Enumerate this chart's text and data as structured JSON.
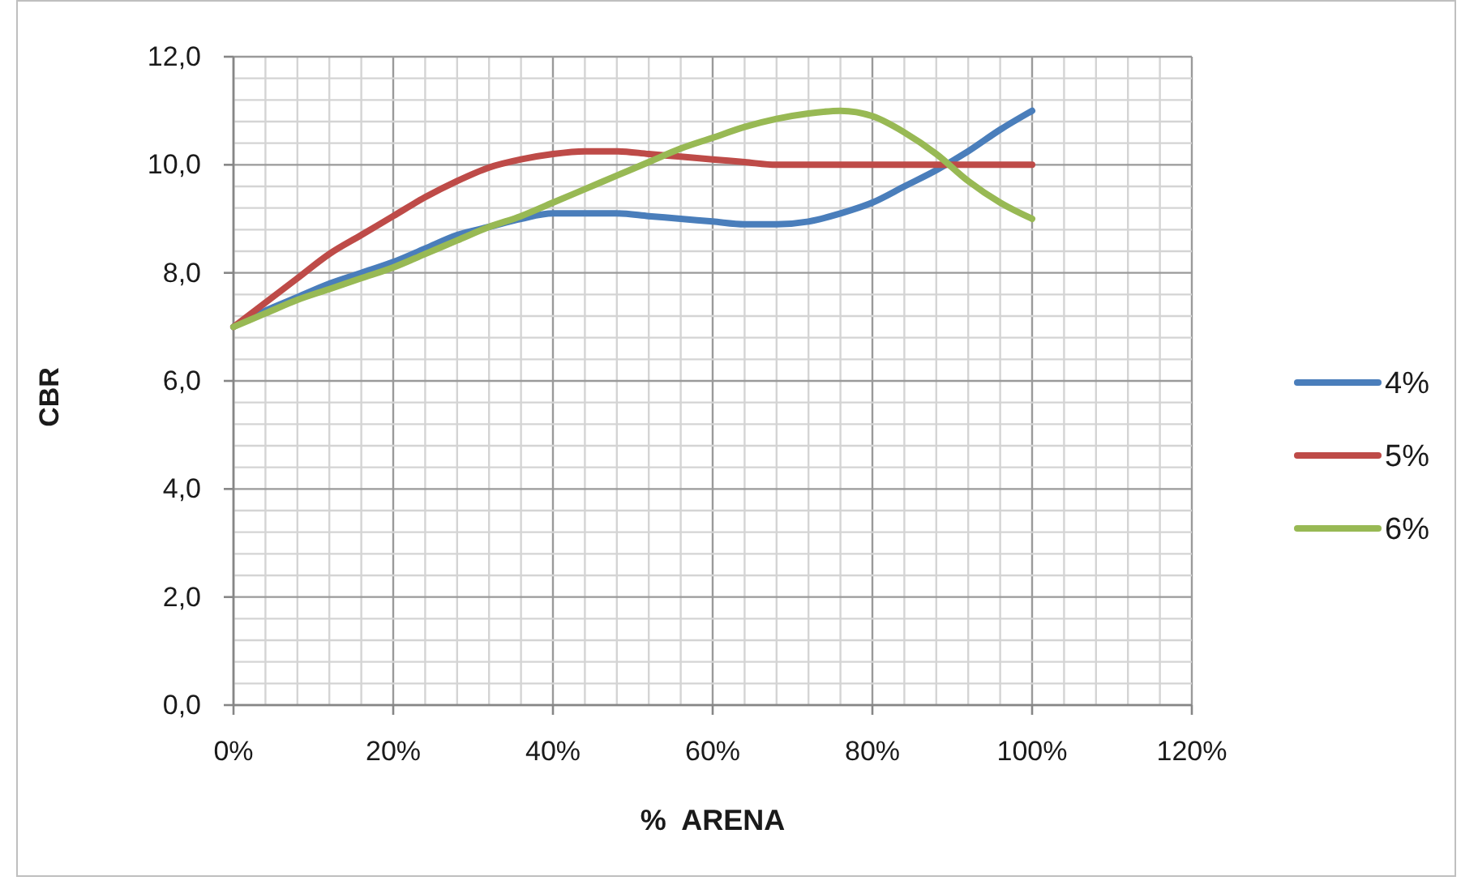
{
  "chart_data": {
    "type": "line",
    "xlabel": "%  ARENA",
    "ylabel": "CBR",
    "x": [
      0,
      4,
      8,
      12,
      16,
      20,
      24,
      28,
      32,
      36,
      40,
      44,
      48,
      52,
      56,
      60,
      64,
      68,
      72,
      76,
      80,
      84,
      88,
      92,
      96,
      100
    ],
    "series": [
      {
        "name": "4%",
        "color": "#4a7ebb",
        "values": [
          7.0,
          7.3,
          7.55,
          7.8,
          8.0,
          8.2,
          8.45,
          8.7,
          8.85,
          9.0,
          9.1,
          9.1,
          9.1,
          9.05,
          9.0,
          8.95,
          8.9,
          8.9,
          8.95,
          9.1,
          9.3,
          9.6,
          9.9,
          10.25,
          10.65,
          11.0
        ]
      },
      {
        "name": "5%",
        "color": "#be4b48",
        "values": [
          7.0,
          7.45,
          7.9,
          8.35,
          8.7,
          9.05,
          9.4,
          9.7,
          9.95,
          10.1,
          10.2,
          10.25,
          10.25,
          10.2,
          10.15,
          10.1,
          10.05,
          10.0,
          10.0,
          10.0,
          10.0,
          10.0,
          10.0,
          10.0,
          10.0,
          10.0
        ]
      },
      {
        "name": "6%",
        "color": "#98b954",
        "values": [
          7.0,
          7.25,
          7.5,
          7.7,
          7.9,
          8.1,
          8.35,
          8.6,
          8.85,
          9.05,
          9.3,
          9.55,
          9.8,
          10.05,
          10.3,
          10.5,
          10.7,
          10.85,
          10.95,
          11.0,
          10.9,
          10.6,
          10.2,
          9.7,
          9.3,
          9.0
        ]
      }
    ],
    "xlim": [
      0,
      120
    ],
    "xticks": [
      {
        "value": 0,
        "label": "0%"
      },
      {
        "value": 4,
        "label": null
      },
      {
        "value": 8,
        "label": null
      },
      {
        "value": 12,
        "label": null
      },
      {
        "value": 16,
        "label": null
      },
      {
        "value": 20,
        "label": "20%"
      },
      {
        "value": 24,
        "label": null
      },
      {
        "value": 28,
        "label": null
      },
      {
        "value": 32,
        "label": null
      },
      {
        "value": 36,
        "label": null
      },
      {
        "value": 40,
        "label": "40%"
      },
      {
        "value": 44,
        "label": null
      },
      {
        "value": 48,
        "label": null
      },
      {
        "value": 52,
        "label": null
      },
      {
        "value": 56,
        "label": null
      },
      {
        "value": 60,
        "label": "60%"
      },
      {
        "value": 64,
        "label": null
      },
      {
        "value": 68,
        "label": null
      },
      {
        "value": 72,
        "label": null
      },
      {
        "value": 76,
        "label": null
      },
      {
        "value": 80,
        "label": "80%"
      },
      {
        "value": 84,
        "label": null
      },
      {
        "value": 88,
        "label": null
      },
      {
        "value": 92,
        "label": null
      },
      {
        "value": 96,
        "label": null
      },
      {
        "value": 100,
        "label": "100%"
      },
      {
        "value": 104,
        "label": null
      },
      {
        "value": 108,
        "label": null
      },
      {
        "value": 112,
        "label": null
      },
      {
        "value": 116,
        "label": null
      },
      {
        "value": 120,
        "label": "120%"
      }
    ],
    "ylim": [
      0,
      12
    ],
    "yticks": [
      {
        "value": 0,
        "label": "0,0"
      },
      {
        "value": 0.4,
        "label": null
      },
      {
        "value": 0.8,
        "label": null
      },
      {
        "value": 1.2,
        "label": null
      },
      {
        "value": 1.6,
        "label": null
      },
      {
        "value": 2,
        "label": "2,0"
      },
      {
        "value": 2.4,
        "label": null
      },
      {
        "value": 2.8,
        "label": null
      },
      {
        "value": 3.2,
        "label": null
      },
      {
        "value": 3.6,
        "label": null
      },
      {
        "value": 4,
        "label": "4,0"
      },
      {
        "value": 4.4,
        "label": null
      },
      {
        "value": 4.8,
        "label": null
      },
      {
        "value": 5.2,
        "label": null
      },
      {
        "value": 5.6,
        "label": null
      },
      {
        "value": 6,
        "label": "6,0"
      },
      {
        "value": 6.4,
        "label": null
      },
      {
        "value": 6.8,
        "label": null
      },
      {
        "value": 7.2,
        "label": null
      },
      {
        "value": 7.6,
        "label": null
      },
      {
        "value": 8,
        "label": "8,0"
      },
      {
        "value": 8.4,
        "label": null
      },
      {
        "value": 8.8,
        "label": null
      },
      {
        "value": 9.2,
        "label": null
      },
      {
        "value": 9.6,
        "label": null
      },
      {
        "value": 10,
        "label": "10,0"
      },
      {
        "value": 10.4,
        "label": null
      },
      {
        "value": 10.8,
        "label": null
      },
      {
        "value": 11.2,
        "label": null
      },
      {
        "value": 11.6,
        "label": null
      },
      {
        "value": 12,
        "label": "12,0"
      }
    ],
    "grid": true,
    "legend": "right"
  }
}
